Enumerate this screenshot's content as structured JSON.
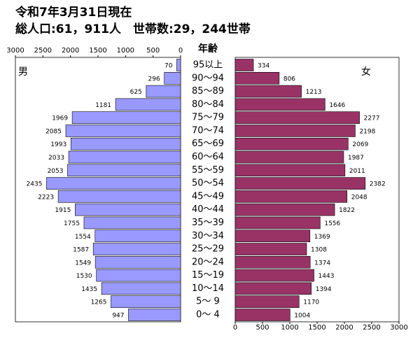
{
  "chart_data": {
    "type": "pyramid",
    "title": "令和7年3月31日現在",
    "subtitle": "総人口:61，911人　世帯数:29，244世帯",
    "y_label": "年齢",
    "categories": [
      "95以上",
      "90～94",
      "85～89",
      "80～84",
      "75～79",
      "70～74",
      "65～69",
      "60～64",
      "55～59",
      "50～54",
      "45～49",
      "40～44",
      "35～39",
      "30～34",
      "25～29",
      "20～24",
      "15～19",
      "10～14",
      "5～ 9",
      "0～ 4"
    ],
    "series": [
      {
        "name": "男",
        "color": "#9999ff",
        "values": [
          70,
          296,
          625,
          1181,
          1969,
          2085,
          1993,
          2033,
          2053,
          2435,
          2223,
          1915,
          1755,
          1554,
          1587,
          1549,
          1530,
          1435,
          1265,
          947
        ]
      },
      {
        "name": "女",
        "color": "#993366",
        "values": [
          334,
          806,
          1213,
          1646,
          2277,
          2198,
          2069,
          1987,
          2011,
          2382,
          2048,
          1822,
          1556,
          1369,
          1308,
          1374,
          1443,
          1394,
          1170,
          1004
        ]
      }
    ],
    "xlim": [
      0,
      3000
    ],
    "xticks": [
      0,
      500,
      1000,
      1500,
      2000,
      2500,
      3000
    ]
  }
}
